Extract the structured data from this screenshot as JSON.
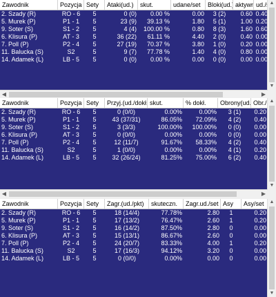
{
  "panels": [
    {
      "headers": [
        "Zawodnik",
        "Pozycja",
        "Sety",
        "Ataki(ud.)",
        "skut.",
        "udane/set",
        "Bloki(ud.)",
        "aktywn.",
        "ud./se"
      ],
      "rows": [
        [
          "2. Szady (R)",
          "RO - 6",
          "5",
          "0 (0)",
          "0.00 %",
          "0.00",
          "3 (2)",
          "0.60",
          "0.40"
        ],
        [
          "5. Murek (P)",
          "P1 - 1",
          "5",
          "23 (9)",
          "39.13 %",
          "1.80",
          "5 (1)",
          "1.00",
          "0.20"
        ],
        [
          "9. Soter (S)",
          "S1 - 2",
          "5",
          "4 (4)",
          "100.00 %",
          "0.80",
          "8 (3)",
          "1.60",
          "0.60"
        ],
        [
          "6. Klisura (P)",
          "AT - 3",
          "5",
          "36 (22)",
          "61.11 %",
          "4.40",
          "2 (0)",
          "0.40",
          "0.00"
        ],
        [
          "7. Poll (P)",
          "P2 - 4",
          "5",
          "27 (19)",
          "70.37 %",
          "3.80",
          "1 (0)",
          "0.20",
          "0.00"
        ],
        [
          "11. Balucka (S)",
          "S2",
          "5",
          "9 (7)",
          "77.78 %",
          "1.40",
          "4 (0)",
          "0.80",
          "0.00"
        ],
        [
          "14. Adamek (L)",
          "LB - 5",
          "5",
          "0 (0)",
          "0.00 %",
          "0.00",
          "0 (0)",
          "0.00",
          "0.00"
        ]
      ]
    },
    {
      "headers": [
        "Zawodnik",
        "Pozycja",
        "Sety",
        "Przyj.(ud./dokł.)",
        "skut.",
        "% dokł.",
        "Obrony(ud.)",
        "Obr./se"
      ],
      "rows": [
        [
          "2. Szady (R)",
          "RO - 6",
          "5",
          "0 (0/0)",
          "0.00%",
          "0.00%",
          "3 (1)",
          "0.20"
        ],
        [
          "5. Murek (P)",
          "P1 - 1",
          "5",
          "43 (37/31)",
          "86.05%",
          "72.09%",
          "4 (2)",
          "0.40"
        ],
        [
          "9. Soter (S)",
          "S1 - 2",
          "5",
          "3 (3/3)",
          "100.00%",
          "100.00%",
          "0 (0)",
          "0.00"
        ],
        [
          "6. Klisura (P)",
          "AT - 3",
          "5",
          "0 (0/0)",
          "0.00%",
          "0.00%",
          "0 (0)",
          "0.00"
        ],
        [
          "7. Poll (P)",
          "P2 - 4",
          "5",
          "12 (11/7)",
          "91.67%",
          "58.33%",
          "4 (2)",
          "0.40"
        ],
        [
          "11. Balucka (S)",
          "S2",
          "5",
          "1 (0/0)",
          "0.00%",
          "0.00%",
          "4 (1)",
          "0.20"
        ],
        [
          "14. Adamek (L)",
          "LB - 5",
          "5",
          "32 (26/24)",
          "81.25%",
          "75.00%",
          "6 (2)",
          "0.40"
        ]
      ]
    },
    {
      "headers": [
        "Zawodnik",
        "Pozycja",
        "Sety",
        "Zagr.(ud./pkt)",
        "skuteczn.",
        "Zagr.ud./set",
        "Asy",
        "Asy/set"
      ],
      "rows": [
        [
          "2. Szady (R)",
          "RO - 6",
          "5",
          "18 (14/4)",
          "77.78%",
          "2.80",
          "1",
          "0.20"
        ],
        [
          "5. Murek (P)",
          "P1 - 1",
          "5",
          "17 (13/2)",
          "76.47%",
          "2.60",
          "1",
          "0.20"
        ],
        [
          "9. Soter (S)",
          "S1 - 2",
          "5",
          "16 (14/2)",
          "87.50%",
          "2.80",
          "0",
          "0.00"
        ],
        [
          "6. Klisura (P)",
          "AT - 3",
          "5",
          "15 (13/1)",
          "86.67%",
          "2.60",
          "0",
          "0.00"
        ],
        [
          "7. Poll (P)",
          "P2 - 4",
          "5",
          "24 (20/7)",
          "83.33%",
          "4.00",
          "1",
          "0.20"
        ],
        [
          "11. Balucka (S)",
          "S2",
          "5",
          "17 (16/3)",
          "94.12%",
          "3.20",
          "0",
          "0.00"
        ],
        [
          "14. Adamek (L)",
          "LB - 5",
          "5",
          "0 (0/0)",
          "0.00%",
          "0.00",
          "0",
          "0.00"
        ]
      ]
    }
  ],
  "colors": {
    "row_bg": "#2a2a7e",
    "header_bg": "#ffffff",
    "window_bg": "#f0f0f0"
  },
  "icons": {
    "scroll_up": "▲",
    "scroll_down": "▼",
    "scroll_left": "◀",
    "scroll_right": "▶"
  }
}
